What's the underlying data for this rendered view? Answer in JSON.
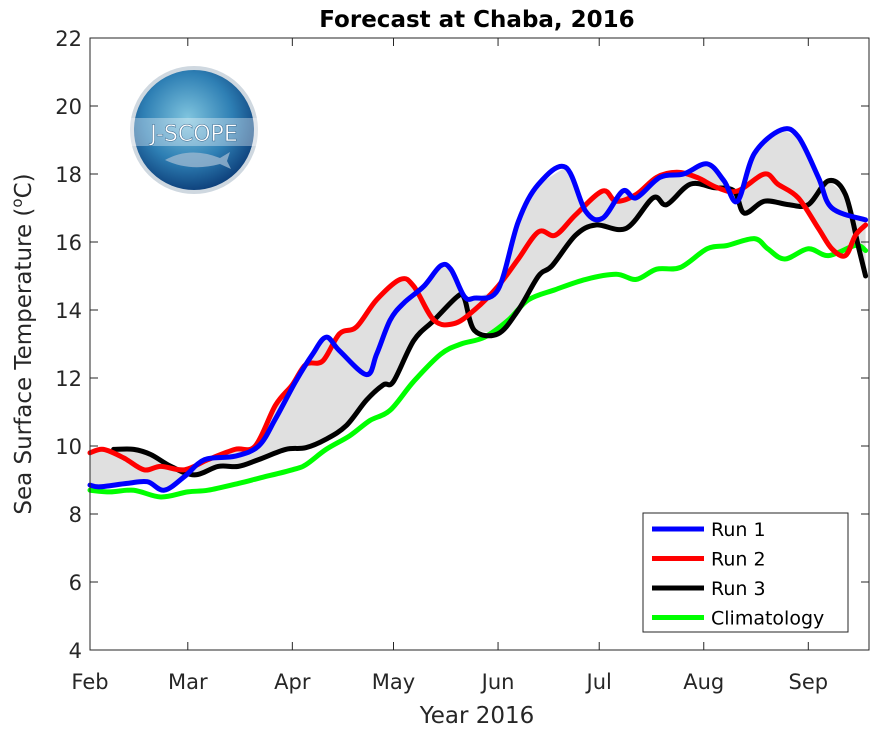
{
  "chart_data": {
    "type": "line",
    "title": "Forecast at Chaba, 2016",
    "xlabel": "Year 2016",
    "ylabel": "Sea Surface Temperature (",
    "ylabel_sup": "o",
    "ylabel_unit": "C)",
    "xlim": [
      "2016-02-01",
      "2016-09-19"
    ],
    "ylim": [
      4,
      22
    ],
    "yticks": [
      4,
      6,
      8,
      10,
      12,
      14,
      16,
      18,
      20,
      22
    ],
    "xticks": [
      {
        "date": "2016-02-01",
        "label": "Feb"
      },
      {
        "date": "2016-03-01",
        "label": "Mar"
      },
      {
        "date": "2016-04-01",
        "label": "Apr"
      },
      {
        "date": "2016-05-01",
        "label": "May"
      },
      {
        "date": "2016-06-01",
        "label": "Jun"
      },
      {
        "date": "2016-07-01",
        "label": "Jul"
      },
      {
        "date": "2016-08-01",
        "label": "Aug"
      },
      {
        "date": "2016-09-01",
        "label": "Sep"
      }
    ],
    "grid": false,
    "legend_position": "bottom-right",
    "ensemble_spread_fill": "#e0e0e0",
    "logo_text": "J-SCOPE",
    "series": [
      {
        "name": "Run 1",
        "color": "#0000ff",
        "points": [
          [
            "2016-02-01",
            8.85
          ],
          [
            "2016-02-04",
            8.8
          ],
          [
            "2016-02-12",
            8.9
          ],
          [
            "2016-02-18",
            8.95
          ],
          [
            "2016-02-23",
            8.7
          ],
          [
            "2016-02-29",
            9.1
          ],
          [
            "2016-03-06",
            9.6
          ],
          [
            "2016-03-15",
            9.7
          ],
          [
            "2016-03-22",
            10.0
          ],
          [
            "2016-03-27",
            10.8
          ],
          [
            "2016-04-02",
            11.9
          ],
          [
            "2016-04-07",
            12.7
          ],
          [
            "2016-04-11",
            13.2
          ],
          [
            "2016-04-15",
            12.8
          ],
          [
            "2016-04-23",
            12.1
          ],
          [
            "2016-04-26",
            12.7
          ],
          [
            "2016-04-30",
            13.7
          ],
          [
            "2016-05-04",
            14.2
          ],
          [
            "2016-05-10",
            14.7
          ],
          [
            "2016-05-15",
            15.3
          ],
          [
            "2016-05-18",
            15.2
          ],
          [
            "2016-05-22",
            14.4
          ],
          [
            "2016-05-25",
            14.35
          ],
          [
            "2016-06-01",
            14.6
          ],
          [
            "2016-06-07",
            16.6
          ],
          [
            "2016-06-13",
            17.7
          ],
          [
            "2016-06-21",
            18.2
          ],
          [
            "2016-06-27",
            16.9
          ],
          [
            "2016-07-02",
            16.7
          ],
          [
            "2016-07-08",
            17.5
          ],
          [
            "2016-07-12",
            17.3
          ],
          [
            "2016-07-19",
            17.9
          ],
          [
            "2016-07-26",
            18.0
          ],
          [
            "2016-08-02",
            18.3
          ],
          [
            "2016-08-07",
            17.8
          ],
          [
            "2016-08-11",
            17.2
          ],
          [
            "2016-08-16",
            18.6
          ],
          [
            "2016-08-24",
            19.3
          ],
          [
            "2016-08-29",
            19.1
          ],
          [
            "2016-09-04",
            17.9
          ],
          [
            "2016-09-08",
            17.0
          ],
          [
            "2016-09-18",
            16.65
          ]
        ]
      },
      {
        "name": "Run 2",
        "color": "#ff0000",
        "points": [
          [
            "2016-02-01",
            9.8
          ],
          [
            "2016-02-05",
            9.9
          ],
          [
            "2016-02-11",
            9.65
          ],
          [
            "2016-02-17",
            9.3
          ],
          [
            "2016-02-22",
            9.4
          ],
          [
            "2016-02-29",
            9.3
          ],
          [
            "2016-03-07",
            9.6
          ],
          [
            "2016-03-15",
            9.9
          ],
          [
            "2016-03-21",
            10.0
          ],
          [
            "2016-03-27",
            11.2
          ],
          [
            "2016-04-01",
            11.8
          ],
          [
            "2016-04-05",
            12.4
          ],
          [
            "2016-04-10",
            12.5
          ],
          [
            "2016-04-15",
            13.3
          ],
          [
            "2016-04-20",
            13.5
          ],
          [
            "2016-04-26",
            14.3
          ],
          [
            "2016-05-03",
            14.9
          ],
          [
            "2016-05-07",
            14.7
          ],
          [
            "2016-05-13",
            13.7
          ],
          [
            "2016-05-19",
            13.6
          ],
          [
            "2016-05-25",
            14.0
          ],
          [
            "2016-06-01",
            14.7
          ],
          [
            "2016-06-07",
            15.5
          ],
          [
            "2016-06-13",
            16.3
          ],
          [
            "2016-06-18",
            16.2
          ],
          [
            "2016-06-24",
            16.8
          ],
          [
            "2016-07-02",
            17.5
          ],
          [
            "2016-07-06",
            17.2
          ],
          [
            "2016-07-12",
            17.4
          ],
          [
            "2016-07-18",
            17.9
          ],
          [
            "2016-07-24",
            18.05
          ],
          [
            "2016-07-30",
            17.9
          ],
          [
            "2016-08-05",
            17.6
          ],
          [
            "2016-08-11",
            17.5
          ],
          [
            "2016-08-19",
            18.0
          ],
          [
            "2016-08-23",
            17.7
          ],
          [
            "2016-08-29",
            17.3
          ],
          [
            "2016-09-04",
            16.4
          ],
          [
            "2016-09-08",
            15.8
          ],
          [
            "2016-09-12",
            15.6
          ],
          [
            "2016-09-15",
            16.2
          ],
          [
            "2016-09-18",
            16.5
          ]
        ]
      },
      {
        "name": "Run 3",
        "color": "#000000",
        "points": [
          [
            "2016-02-08",
            9.9
          ],
          [
            "2016-02-14",
            9.9
          ],
          [
            "2016-02-19",
            9.75
          ],
          [
            "2016-02-25",
            9.4
          ],
          [
            "2016-03-03",
            9.15
          ],
          [
            "2016-03-10",
            9.4
          ],
          [
            "2016-03-16",
            9.4
          ],
          [
            "2016-03-22",
            9.6
          ],
          [
            "2016-03-30",
            9.9
          ],
          [
            "2016-04-05",
            9.95
          ],
          [
            "2016-04-11",
            10.2
          ],
          [
            "2016-04-17",
            10.6
          ],
          [
            "2016-04-23",
            11.35
          ],
          [
            "2016-04-28",
            11.8
          ],
          [
            "2016-05-01",
            11.9
          ],
          [
            "2016-05-07",
            13.1
          ],
          [
            "2016-05-13",
            13.7
          ],
          [
            "2016-05-20",
            14.4
          ],
          [
            "2016-05-22",
            14.35
          ],
          [
            "2016-05-25",
            13.4
          ],
          [
            "2016-06-01",
            13.3
          ],
          [
            "2016-06-07",
            14.0
          ],
          [
            "2016-06-13",
            15.0
          ],
          [
            "2016-06-17",
            15.3
          ],
          [
            "2016-06-24",
            16.2
          ],
          [
            "2016-06-30",
            16.5
          ],
          [
            "2016-07-09",
            16.4
          ],
          [
            "2016-07-17",
            17.3
          ],
          [
            "2016-07-21",
            17.1
          ],
          [
            "2016-07-28",
            17.7
          ],
          [
            "2016-08-04",
            17.6
          ],
          [
            "2016-08-10",
            17.5
          ],
          [
            "2016-08-13",
            16.85
          ],
          [
            "2016-08-19",
            17.2
          ],
          [
            "2016-08-26",
            17.1
          ],
          [
            "2016-09-01",
            17.1
          ],
          [
            "2016-09-07",
            17.8
          ],
          [
            "2016-09-12",
            17.4
          ],
          [
            "2016-09-16",
            15.8
          ],
          [
            "2016-09-18",
            15.0
          ]
        ]
      },
      {
        "name": "Climatology",
        "color": "#00ff00",
        "points": [
          [
            "2016-02-01",
            8.7
          ],
          [
            "2016-02-07",
            8.65
          ],
          [
            "2016-02-14",
            8.7
          ],
          [
            "2016-02-22",
            8.5
          ],
          [
            "2016-03-01",
            8.65
          ],
          [
            "2016-03-07",
            8.7
          ],
          [
            "2016-03-16",
            8.9
          ],
          [
            "2016-03-22",
            9.05
          ],
          [
            "2016-04-01",
            9.3
          ],
          [
            "2016-04-05",
            9.45
          ],
          [
            "2016-04-11",
            9.9
          ],
          [
            "2016-04-18",
            10.3
          ],
          [
            "2016-04-24",
            10.75
          ],
          [
            "2016-04-30",
            11.05
          ],
          [
            "2016-05-07",
            11.9
          ],
          [
            "2016-05-15",
            12.7
          ],
          [
            "2016-05-21",
            13.0
          ],
          [
            "2016-05-28",
            13.2
          ],
          [
            "2016-06-04",
            13.7
          ],
          [
            "2016-06-10",
            14.3
          ],
          [
            "2016-06-18",
            14.6
          ],
          [
            "2016-06-27",
            14.9
          ],
          [
            "2016-07-06",
            15.05
          ],
          [
            "2016-07-12",
            14.9
          ],
          [
            "2016-07-18",
            15.2
          ],
          [
            "2016-07-25",
            15.25
          ],
          [
            "2016-08-02",
            15.8
          ],
          [
            "2016-08-08",
            15.9
          ],
          [
            "2016-08-16",
            16.1
          ],
          [
            "2016-08-20",
            15.8
          ],
          [
            "2016-08-25",
            15.5
          ],
          [
            "2016-09-01",
            15.8
          ],
          [
            "2016-09-07",
            15.6
          ],
          [
            "2016-09-15",
            15.9
          ],
          [
            "2016-09-18",
            15.75
          ]
        ]
      }
    ]
  }
}
